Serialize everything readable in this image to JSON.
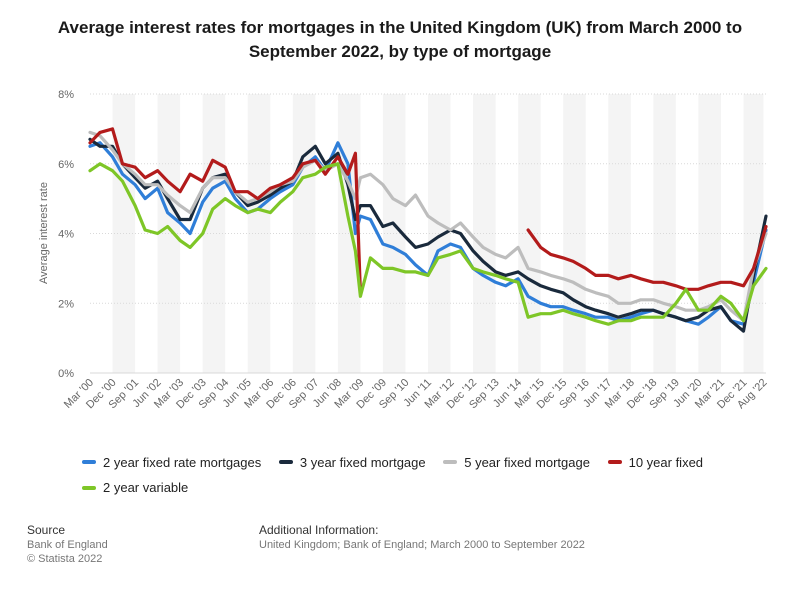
{
  "chart_data": {
    "type": "line",
    "title": "Average interest rates for mortgages in the United Kingdom (UK) from March 2000 to September 2022, by type of mortgage",
    "ylabel": "Average interest rate",
    "xlabel": "",
    "ylim": [
      0,
      8
    ],
    "y_ticks": [
      "0%",
      "2%",
      "4%",
      "6%",
      "8%"
    ],
    "y_tick_values": [
      0,
      2,
      4,
      6,
      8
    ],
    "x_tick_labels": [
      "Mar '00",
      "Dec '00",
      "Sep '01",
      "Jun '02",
      "Mar '03",
      "Dec '03",
      "Sep '04",
      "Jun '05",
      "Mar '06",
      "Dec '06",
      "Sep '07",
      "Jun '08",
      "Mar '09",
      "Dec '09",
      "Sep '10",
      "Jun '11",
      "Mar '12",
      "Dec '12",
      "Sep '13",
      "Jun '14",
      "Mar '15",
      "Dec '15",
      "Sep '16",
      "Jun '17",
      "Mar '18",
      "Dec '18",
      "Sep '19",
      "Jun '20",
      "Mar '21",
      "Dec '21",
      "Aug '22"
    ],
    "x_tick_positions": [
      2000.167,
      2000.917,
      2001.667,
      2002.417,
      2003.167,
      2003.917,
      2004.667,
      2005.417,
      2006.167,
      2006.917,
      2007.667,
      2008.417,
      2009.167,
      2009.917,
      2010.667,
      2011.417,
      2012.167,
      2012.917,
      2013.667,
      2014.417,
      2015.167,
      2015.917,
      2016.667,
      2017.417,
      2018.167,
      2018.917,
      2019.667,
      2020.417,
      2021.167,
      2021.917,
      2022.583
    ],
    "x_range": [
      2000.167,
      2022.667
    ],
    "legend_position": "bottom",
    "grid": true,
    "series": [
      {
        "name": "2 year fixed rate mortgages",
        "color": "#2f7ed8",
        "x": [
          2000.167,
          2000.5,
          2000.917,
          2001.25,
          2001.667,
          2002.0,
          2002.417,
          2002.75,
          2003.167,
          2003.5,
          2003.917,
          2004.25,
          2004.667,
          2005.0,
          2005.417,
          2005.75,
          2006.167,
          2006.5,
          2006.917,
          2007.25,
          2007.667,
          2008.0,
          2008.417,
          2008.75,
          2009.0,
          2009.167,
          2009.5,
          2009.917,
          2010.25,
          2010.667,
          2011.0,
          2011.417,
          2011.75,
          2012.167,
          2012.5,
          2012.917,
          2013.25,
          2013.667,
          2014.0,
          2014.417,
          2014.75,
          2015.167,
          2015.5,
          2015.917,
          2016.25,
          2016.667,
          2017.0,
          2017.417,
          2017.75,
          2018.167,
          2018.5,
          2018.917,
          2019.25,
          2019.667,
          2020.0,
          2020.417,
          2020.75,
          2021.167,
          2021.5,
          2021.917,
          2022.25,
          2022.667
        ],
        "y": [
          6.5,
          6.6,
          6.2,
          5.7,
          5.4,
          5.0,
          5.3,
          4.6,
          4.3,
          4.0,
          4.9,
          5.3,
          5.5,
          5.0,
          4.6,
          4.7,
          5.0,
          5.2,
          5.4,
          5.9,
          6.2,
          5.8,
          6.6,
          6.0,
          4.0,
          4.5,
          4.4,
          3.7,
          3.6,
          3.4,
          3.1,
          2.8,
          3.5,
          3.7,
          3.6,
          3.0,
          2.8,
          2.6,
          2.5,
          2.7,
          2.2,
          2.0,
          1.9,
          1.9,
          1.8,
          1.7,
          1.6,
          1.6,
          1.5,
          1.6,
          1.7,
          1.8,
          1.7,
          1.6,
          1.5,
          1.4,
          1.6,
          1.9,
          1.5,
          1.4,
          2.6,
          4.1
        ]
      },
      {
        "name": "3 year fixed mortgage",
        "color": "#1a2a3c",
        "x": [
          2000.167,
          2000.5,
          2000.917,
          2001.25,
          2001.667,
          2002.0,
          2002.417,
          2002.75,
          2003.167,
          2003.5,
          2003.917,
          2004.25,
          2004.667,
          2005.0,
          2005.417,
          2005.75,
          2006.167,
          2006.5,
          2006.917,
          2007.25,
          2007.667,
          2008.0,
          2008.417,
          2008.75,
          2009.0,
          2009.167,
          2009.5,
          2009.917,
          2010.25,
          2010.667,
          2011.0,
          2011.417,
          2011.75,
          2012.167,
          2012.5,
          2012.917,
          2013.25,
          2013.667,
          2014.0,
          2014.417,
          2014.75,
          2015.167,
          2015.5,
          2015.917,
          2016.25,
          2016.667,
          2017.0,
          2017.417,
          2017.75,
          2018.167,
          2018.5,
          2018.917,
          2019.25,
          2019.667,
          2020.0,
          2020.417,
          2020.75,
          2021.167,
          2021.5,
          2021.917,
          2022.25,
          2022.667
        ],
        "y": [
          6.7,
          6.5,
          6.5,
          6.0,
          5.6,
          5.3,
          5.5,
          5.0,
          4.4,
          4.4,
          5.3,
          5.6,
          5.7,
          5.2,
          4.8,
          4.9,
          5.1,
          5.3,
          5.5,
          6.2,
          6.5,
          6.0,
          6.3,
          5.4,
          4.4,
          4.8,
          4.8,
          4.2,
          4.3,
          3.9,
          3.6,
          3.7,
          3.9,
          4.1,
          4.0,
          3.5,
          3.2,
          2.9,
          2.8,
          2.9,
          2.7,
          2.5,
          2.4,
          2.3,
          2.1,
          1.9,
          1.8,
          1.7,
          1.6,
          1.7,
          1.8,
          1.8,
          1.7,
          1.6,
          1.5,
          1.6,
          1.8,
          1.9,
          1.5,
          1.2,
          2.8,
          4.5
        ]
      },
      {
        "name": "5 year fixed mortgage",
        "color": "#bdbdbd",
        "x": [
          2000.167,
          2000.5,
          2000.917,
          2001.25,
          2001.667,
          2002.0,
          2002.417,
          2002.75,
          2003.167,
          2003.5,
          2003.917,
          2004.25,
          2004.667,
          2005.0,
          2005.417,
          2005.75,
          2006.167,
          2006.5,
          2006.917,
          2007.25,
          2007.667,
          2008.0,
          2008.417,
          2008.75,
          2009.0,
          2009.167,
          2009.5,
          2009.917,
          2010.25,
          2010.667,
          2011.0,
          2011.417,
          2011.75,
          2012.167,
          2012.5,
          2012.917,
          2013.25,
          2013.667,
          2014.0,
          2014.417,
          2014.75,
          2015.167,
          2015.5,
          2015.917,
          2016.25,
          2016.667,
          2017.0,
          2017.417,
          2017.75,
          2018.167,
          2018.5,
          2018.917,
          2019.25,
          2019.667,
          2020.0,
          2020.417,
          2020.75,
          2021.167,
          2021.5,
          2021.917,
          2022.25,
          2022.667
        ],
        "y": [
          6.9,
          6.8,
          6.4,
          6.0,
          5.7,
          5.4,
          5.4,
          5.1,
          4.8,
          4.6,
          5.3,
          5.6,
          5.6,
          5.2,
          4.9,
          5.0,
          5.2,
          5.4,
          5.5,
          5.9,
          6.1,
          5.8,
          6.0,
          5.5,
          5.0,
          5.6,
          5.7,
          5.4,
          5.0,
          4.8,
          5.1,
          4.5,
          4.3,
          4.1,
          4.3,
          3.9,
          3.6,
          3.4,
          3.3,
          3.6,
          3.0,
          2.9,
          2.8,
          2.7,
          2.6,
          2.4,
          2.3,
          2.2,
          2.0,
          2.0,
          2.1,
          2.1,
          2.0,
          1.9,
          1.8,
          1.8,
          1.9,
          2.1,
          1.8,
          1.5,
          3.0,
          4.0
        ]
      },
      {
        "name": "10 year fixed",
        "color": "#b31b1b",
        "x": [
          2000.167,
          2000.5,
          2000.917,
          2001.25,
          2001.667,
          2002.0,
          2002.417,
          2002.75,
          2003.167,
          2003.5,
          2003.917,
          2004.25,
          2004.667,
          2005.0,
          2005.417,
          2005.75,
          2006.167,
          2006.5,
          2006.917,
          2007.25,
          2007.667,
          2008.0,
          2008.417,
          2008.75,
          2009.0,
          2009.167,
          null,
          2014.75,
          2015.167,
          2015.5,
          2015.917,
          2016.25,
          2016.667,
          2017.0,
          2017.417,
          2017.75,
          2018.167,
          2018.5,
          2018.917,
          2019.25,
          2019.667,
          2020.0,
          2020.417,
          2020.75,
          2021.167,
          2021.5,
          2021.917,
          2022.25,
          2022.667
        ],
        "y": [
          6.6,
          6.9,
          7.0,
          6.0,
          5.9,
          5.6,
          5.8,
          5.5,
          5.2,
          5.7,
          5.5,
          6.1,
          5.9,
          5.2,
          5.2,
          5.0,
          5.3,
          5.4,
          5.6,
          6.0,
          6.1,
          5.7,
          6.2,
          5.7,
          6.3,
          2.3,
          null,
          4.1,
          3.6,
          3.4,
          3.3,
          3.2,
          3.0,
          2.8,
          2.8,
          2.7,
          2.8,
          2.7,
          2.6,
          2.6,
          2.5,
          2.4,
          2.4,
          2.5,
          2.6,
          2.6,
          2.5,
          3.0,
          4.2
        ]
      },
      {
        "name": "2 year variable",
        "color": "#7ec627",
        "x": [
          2000.167,
          2000.5,
          2000.917,
          2001.25,
          2001.667,
          2002.0,
          2002.417,
          2002.75,
          2003.167,
          2003.5,
          2003.917,
          2004.25,
          2004.667,
          2005.0,
          2005.417,
          2005.75,
          2006.167,
          2006.5,
          2006.917,
          2007.25,
          2007.667,
          2008.0,
          2008.417,
          2008.75,
          2009.0,
          2009.167,
          2009.5,
          2009.917,
          2010.25,
          2010.667,
          2011.0,
          2011.417,
          2011.75,
          2012.167,
          2012.5,
          2012.917,
          2013.25,
          2013.667,
          2014.0,
          2014.417,
          2014.75,
          2015.167,
          2015.5,
          2015.917,
          2016.25,
          2016.667,
          2017.0,
          2017.417,
          2017.75,
          2018.167,
          2018.5,
          2018.917,
          2019.25,
          2019.667,
          2020.0,
          2020.417,
          2020.75,
          2021.167,
          2021.5,
          2021.917,
          2022.25,
          2022.667
        ],
        "y": [
          5.8,
          6.0,
          5.8,
          5.5,
          4.8,
          4.1,
          4.0,
          4.2,
          3.8,
          3.6,
          4.0,
          4.7,
          5.0,
          4.8,
          4.6,
          4.7,
          4.6,
          4.9,
          5.2,
          5.6,
          5.7,
          5.9,
          6.0,
          4.5,
          3.5,
          2.2,
          3.3,
          3.0,
          3.0,
          2.9,
          2.9,
          2.8,
          3.3,
          3.4,
          3.5,
          3.0,
          2.9,
          2.8,
          2.7,
          2.6,
          1.6,
          1.7,
          1.7,
          1.8,
          1.7,
          1.6,
          1.5,
          1.4,
          1.5,
          1.5,
          1.6,
          1.6,
          1.6,
          2.0,
          2.4,
          1.8,
          1.8,
          2.2,
          2.0,
          1.5,
          2.5,
          3.0
        ]
      }
    ]
  },
  "legend_labels": [
    "2 year fixed rate mortgages",
    "3 year fixed mortgage",
    "5 year fixed mortgage",
    "10 year fixed",
    "2 year variable"
  ],
  "legend_colors": [
    "#2f7ed8",
    "#1a2a3c",
    "#bdbdbd",
    "#b31b1b",
    "#7ec627"
  ],
  "footer": {
    "source_heading": "Source",
    "source_lines": [
      "Bank of England",
      "© Statista 2022"
    ],
    "info_heading": "Additional Information:",
    "info_text": "United Kingdom; Bank of England; March 2000 to September 2022"
  }
}
